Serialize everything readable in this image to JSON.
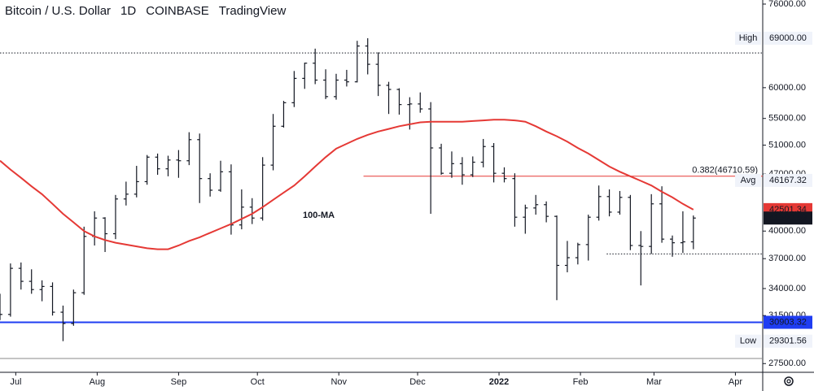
{
  "chart_data": {
    "type": "ohlc",
    "title": "Bitcoin / U.S. Dollar",
    "interval": "1D",
    "exchange": "COINBASE",
    "source": "TradingView",
    "log_scale": true,
    "color": "#131722",
    "xlim": [
      0,
      72.6
    ],
    "xticks": [
      {
        "value": 1.5,
        "label": "Jul"
      },
      {
        "value": 9.25,
        "label": "Aug"
      },
      {
        "value": 17,
        "label": "Sep"
      },
      {
        "value": 24.5,
        "label": "Oct"
      },
      {
        "value": 32.25,
        "label": "Nov"
      },
      {
        "value": 39.75,
        "label": "Dec"
      },
      {
        "value": 47.5,
        "label": "2022"
      },
      {
        "value": 55.25,
        "label": "Feb"
      },
      {
        "value": 62.25,
        "label": "Mar"
      },
      {
        "value": 70,
        "label": "Apr"
      }
    ],
    "ylim": [
      26830,
      76880
    ],
    "yticks": [
      {
        "value": 76000,
        "label": "76000.00"
      },
      {
        "value": 60000,
        "label": "60000.00"
      },
      {
        "value": 55000,
        "label": "55000.00"
      },
      {
        "value": 51000,
        "label": "51000.00"
      },
      {
        "value": 47000,
        "label": "47000.00"
      },
      {
        "value": 40000,
        "label": "40000.00"
      },
      {
        "value": 37000,
        "label": "37000.00"
      },
      {
        "value": 34000,
        "label": "34000.00"
      },
      {
        "value": 31500,
        "label": "31500.00"
      },
      {
        "value": 27500,
        "label": "27500.00"
      }
    ],
    "open": [
      32500,
      31600,
      36000,
      34700,
      33900,
      34200,
      31800,
      30800,
      33600,
      39400,
      41500,
      39700,
      43800,
      44400,
      46000,
      49300,
      47700,
      48900,
      48800,
      51800,
      46400,
      44900,
      47300,
      40700,
      42800,
      41500,
      48200,
      53800,
      57500,
      61600,
      64300,
      61300,
      58500,
      61300,
      61000,
      67500,
      64100,
      60400,
      59700,
      57200,
      57300,
      56500,
      50600,
      47100,
      48400,
      46900,
      48600,
      50800,
      47100,
      46400,
      41600,
      42700,
      43100,
      41700,
      36300,
      37100,
      38500,
      41600,
      44100,
      42200,
      44000,
      38400,
      38300,
      43200,
      39100,
      38700,
      38800
    ],
    "high": [
      33500,
      36500,
      36600,
      35900,
      34800,
      34600,
      32400,
      33900,
      40500,
      42300,
      41600,
      44300,
      46000,
      48100,
      49600,
      49800,
      49500,
      50300,
      52900,
      52700,
      47100,
      48800,
      48300,
      45000,
      43900,
      49300,
      55700,
      57800,
      62900,
      64400,
      67000,
      63200,
      62400,
      63100,
      68500,
      69000,
      66300,
      61000,
      59900,
      58400,
      59200,
      57600,
      51200,
      50100,
      49300,
      49400,
      51900,
      51300,
      47900,
      47100,
      43100,
      44300,
      43500,
      41800,
      38900,
      38700,
      41900,
      45500,
      45000,
      44800,
      44300,
      40000,
      44400,
      45400,
      39500,
      42300,
      41800
    ],
    "low": [
      31100,
      31400,
      33900,
      33500,
      32800,
      31500,
      29300,
      30600,
      33400,
      38400,
      37700,
      39100,
      43000,
      44000,
      45600,
      46900,
      46700,
      46500,
      48200,
      43300,
      44100,
      44700,
      39600,
      40200,
      40800,
      41200,
      47500,
      53600,
      56800,
      59800,
      60600,
      58100,
      58000,
      60200,
      60900,
      62300,
      58600,
      55700,
      55600,
      53300,
      55900,
      42000,
      46900,
      46500,
      45600,
      46600,
      47900,
      45900,
      45900,
      40500,
      39700,
      41900,
      41000,
      32900,
      35600,
      36400,
      36800,
      41200,
      41700,
      41900,
      37900,
      34300,
      37500,
      38700,
      37200,
      37600,
      38000
    ],
    "close": [
      31600,
      36000,
      34700,
      33900,
      34200,
      31800,
      30800,
      33600,
      39400,
      41500,
      39700,
      43800,
      44400,
      46000,
      49300,
      47700,
      48900,
      48800,
      51800,
      46400,
      44900,
      47300,
      40700,
      42800,
      41500,
      48200,
      53800,
      57500,
      61600,
      64300,
      61300,
      58500,
      61300,
      61000,
      67500,
      64100,
      60400,
      59700,
      57200,
      57300,
      56500,
      50600,
      47100,
      48400,
      46900,
      48600,
      50800,
      47100,
      46400,
      41600,
      42700,
      43100,
      41700,
      36300,
      37100,
      38500,
      41600,
      44100,
      42200,
      44000,
      38400,
      38300,
      43200,
      39100,
      38700,
      38800,
      41500
    ],
    "ma": {
      "name": "100-MA",
      "color": "#e53935",
      "values": [
        48800,
        47600,
        46500,
        45400,
        44400,
        43200,
        42000,
        41000,
        40000,
        39400,
        39000,
        38700,
        38500,
        38300,
        38100,
        38000,
        38000,
        38400,
        38900,
        39300,
        39800,
        40300,
        40800,
        41400,
        42000,
        42800,
        43700,
        44600,
        45500,
        46700,
        48000,
        49300,
        50500,
        51200,
        51900,
        52500,
        53000,
        53400,
        53800,
        54100,
        54400,
        54500,
        54500,
        54500,
        54500,
        54600,
        54700,
        54800,
        54800,
        54700,
        54500,
        53800,
        53000,
        52300,
        51500,
        50600,
        49800,
        48900,
        48000,
        47300,
        46700,
        46100,
        45500,
        44700,
        44000,
        43200,
        42500
      ]
    },
    "fib": {
      "label": "0.382(46710.59)",
      "value": 46710.59,
      "x_start": 34.6,
      "color": "#e53935"
    },
    "levels": [
      {
        "name": "High",
        "value": 69000,
        "value_label": "69000.00"
      },
      {
        "name": "Avg",
        "value": 46167.32,
        "value_label": "46167.32"
      },
      {
        "name": "Low",
        "value": 29301.56,
        "value_label": "29301.56"
      }
    ],
    "price_labels": [
      {
        "value": 42501.34,
        "color": "#e53935"
      },
      {
        "value": 41500.59,
        "color": "#131722"
      },
      {
        "value": 30903.32,
        "color": "#1f3df2"
      }
    ],
    "hlines": [
      {
        "value": 30903.32,
        "color": "#1f3df2",
        "style": "solid",
        "x_start": 0
      },
      {
        "value": 66200,
        "color": "#131722",
        "style": "dotted",
        "x_start": 0
      },
      {
        "value": 37500,
        "color": "#131722",
        "style": "dotted",
        "x_start": 57.75
      },
      {
        "value": 27900,
        "color": "#888888",
        "style": "solid",
        "x_start": 0
      }
    ]
  }
}
